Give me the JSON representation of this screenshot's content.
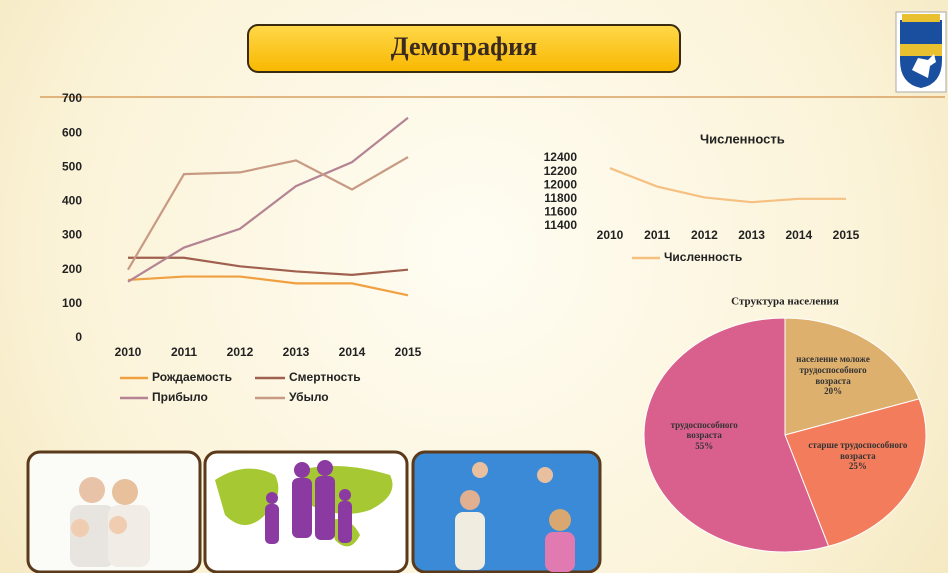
{
  "header": {
    "title": "Демография"
  },
  "chart_data": [
    {
      "type": "line",
      "categories": [
        "2010",
        "2011",
        "2012",
        "2013",
        "2014",
        "2015"
      ],
      "series": [
        {
          "name": "Рождаемость",
          "color": "#f0a040",
          "values": [
            170,
            180,
            180,
            160,
            160,
            125
          ]
        },
        {
          "name": "Смертность",
          "color": "#a0604f",
          "values": [
            235,
            235,
            210,
            195,
            185,
            200
          ]
        },
        {
          "name": "Прибыло",
          "color": "#b48494",
          "values": [
            165,
            265,
            320,
            445,
            515,
            645
          ]
        },
        {
          "name": "Убыло",
          "color": "#c89a84",
          "values": [
            200,
            480,
            485,
            520,
            435,
            530
          ]
        }
      ],
      "ylim": [
        0,
        700
      ],
      "yticks": [
        0,
        100,
        200,
        300,
        400,
        500,
        600,
        700
      ],
      "grid": false,
      "legend": "bottom"
    },
    {
      "type": "line",
      "title": "Численность",
      "categories": [
        "2010",
        "2011",
        "2012",
        "2013",
        "2014",
        "2015"
      ],
      "series": [
        {
          "name": "Численность",
          "color": "#f5c080",
          "values": [
            12250,
            11980,
            11820,
            11750,
            11800,
            11800
          ]
        }
      ],
      "ylim": [
        11400,
        12400
      ],
      "yticks": [
        11400,
        11600,
        11800,
        12000,
        12200,
        12400
      ],
      "grid": false,
      "legend": "bottom"
    },
    {
      "type": "pie",
      "title": "Структура населения",
      "labels": [
        "население моложе трудоспособного возраста",
        "старше трудоспособного возраста",
        "трудоспособного возраста"
      ],
      "values": [
        20,
        25,
        55
      ],
      "value_labels": [
        "20%",
        "25%",
        "55%"
      ],
      "colors": [
        "#deb06e",
        "#f27c5c",
        "#d9608c"
      ]
    }
  ]
}
